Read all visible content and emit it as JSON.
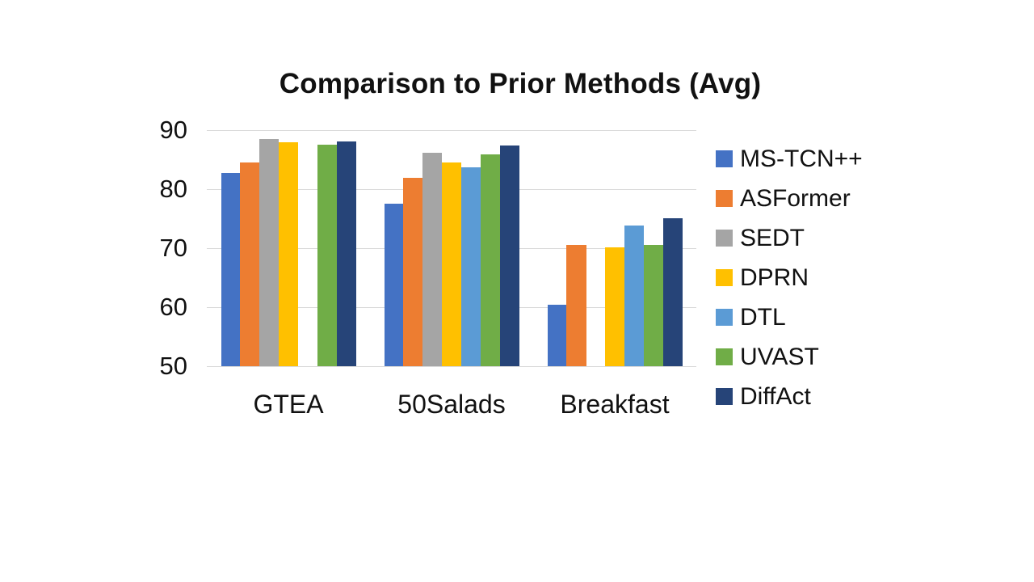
{
  "slide": {
    "background_color": "#FFFFFF"
  },
  "chart_data": {
    "type": "bar",
    "title": "Comparison to Prior Methods (Avg)",
    "categories": [
      "GTEA",
      "50Salads",
      "Breakfast"
    ],
    "series": [
      {
        "name": "MS-TCN++",
        "color": "#4472C4",
        "values": [
          82.8,
          77.5,
          60.4
        ]
      },
      {
        "name": "ASFormer",
        "color": "#ED7D31",
        "values": [
          84.5,
          81.9,
          70.5
        ]
      },
      {
        "name": "SEDT",
        "color": "#A5A5A5",
        "values": [
          88.5,
          86.2,
          null
        ]
      },
      {
        "name": "DPRN",
        "color": "#FFC000",
        "values": [
          88.0,
          84.5,
          70.1
        ]
      },
      {
        "name": "DTL",
        "color": "#5B9BD5",
        "values": [
          null,
          83.7,
          73.9
        ]
      },
      {
        "name": "UVAST",
        "color": "#70AD47",
        "values": [
          87.5,
          85.9,
          70.6
        ]
      },
      {
        "name": "DiffAct",
        "color": "#264478",
        "values": [
          88.1,
          87.4,
          75.1
        ]
      }
    ],
    "ylim": [
      50,
      90
    ],
    "yticks": [
      90,
      80,
      70,
      60,
      50
    ],
    "grid": true,
    "gridline_color": "#D9D9D9",
    "legend_position": "right",
    "text_color": "#111111"
  }
}
